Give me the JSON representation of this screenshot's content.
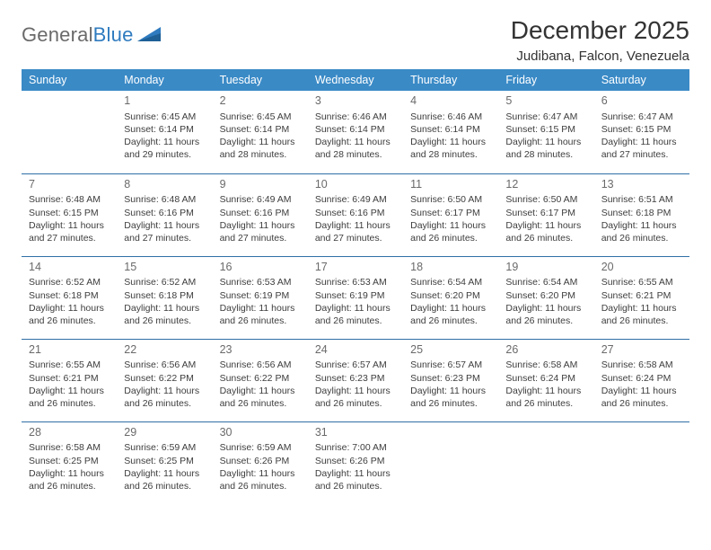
{
  "logo": {
    "part1": "General",
    "part2": "Blue"
  },
  "title": "December 2025",
  "subtitle": "Judibana, Falcon, Venezuela",
  "colors": {
    "header_bg": "#3a8ac6",
    "header_text": "#ffffff",
    "row_border": "#2f6fa6",
    "daynum_text": "#6a6a6a",
    "body_text": "#3d3d3d",
    "page_bg": "#ffffff",
    "logo_gray": "#6a6a6a",
    "logo_blue": "#2f7bbf"
  },
  "dayHeaders": [
    "Sunday",
    "Monday",
    "Tuesday",
    "Wednesday",
    "Thursday",
    "Friday",
    "Saturday"
  ],
  "weeks": [
    [
      null,
      {
        "n": "1",
        "sr": "Sunrise: 6:45 AM",
        "ss": "Sunset: 6:14 PM",
        "d1": "Daylight: 11 hours",
        "d2": "and 29 minutes."
      },
      {
        "n": "2",
        "sr": "Sunrise: 6:45 AM",
        "ss": "Sunset: 6:14 PM",
        "d1": "Daylight: 11 hours",
        "d2": "and 28 minutes."
      },
      {
        "n": "3",
        "sr": "Sunrise: 6:46 AM",
        "ss": "Sunset: 6:14 PM",
        "d1": "Daylight: 11 hours",
        "d2": "and 28 minutes."
      },
      {
        "n": "4",
        "sr": "Sunrise: 6:46 AM",
        "ss": "Sunset: 6:14 PM",
        "d1": "Daylight: 11 hours",
        "d2": "and 28 minutes."
      },
      {
        "n": "5",
        "sr": "Sunrise: 6:47 AM",
        "ss": "Sunset: 6:15 PM",
        "d1": "Daylight: 11 hours",
        "d2": "and 28 minutes."
      },
      {
        "n": "6",
        "sr": "Sunrise: 6:47 AM",
        "ss": "Sunset: 6:15 PM",
        "d1": "Daylight: 11 hours",
        "d2": "and 27 minutes."
      }
    ],
    [
      {
        "n": "7",
        "sr": "Sunrise: 6:48 AM",
        "ss": "Sunset: 6:15 PM",
        "d1": "Daylight: 11 hours",
        "d2": "and 27 minutes."
      },
      {
        "n": "8",
        "sr": "Sunrise: 6:48 AM",
        "ss": "Sunset: 6:16 PM",
        "d1": "Daylight: 11 hours",
        "d2": "and 27 minutes."
      },
      {
        "n": "9",
        "sr": "Sunrise: 6:49 AM",
        "ss": "Sunset: 6:16 PM",
        "d1": "Daylight: 11 hours",
        "d2": "and 27 minutes."
      },
      {
        "n": "10",
        "sr": "Sunrise: 6:49 AM",
        "ss": "Sunset: 6:16 PM",
        "d1": "Daylight: 11 hours",
        "d2": "and 27 minutes."
      },
      {
        "n": "11",
        "sr": "Sunrise: 6:50 AM",
        "ss": "Sunset: 6:17 PM",
        "d1": "Daylight: 11 hours",
        "d2": "and 26 minutes."
      },
      {
        "n": "12",
        "sr": "Sunrise: 6:50 AM",
        "ss": "Sunset: 6:17 PM",
        "d1": "Daylight: 11 hours",
        "d2": "and 26 minutes."
      },
      {
        "n": "13",
        "sr": "Sunrise: 6:51 AM",
        "ss": "Sunset: 6:18 PM",
        "d1": "Daylight: 11 hours",
        "d2": "and 26 minutes."
      }
    ],
    [
      {
        "n": "14",
        "sr": "Sunrise: 6:52 AM",
        "ss": "Sunset: 6:18 PM",
        "d1": "Daylight: 11 hours",
        "d2": "and 26 minutes."
      },
      {
        "n": "15",
        "sr": "Sunrise: 6:52 AM",
        "ss": "Sunset: 6:18 PM",
        "d1": "Daylight: 11 hours",
        "d2": "and 26 minutes."
      },
      {
        "n": "16",
        "sr": "Sunrise: 6:53 AM",
        "ss": "Sunset: 6:19 PM",
        "d1": "Daylight: 11 hours",
        "d2": "and 26 minutes."
      },
      {
        "n": "17",
        "sr": "Sunrise: 6:53 AM",
        "ss": "Sunset: 6:19 PM",
        "d1": "Daylight: 11 hours",
        "d2": "and 26 minutes."
      },
      {
        "n": "18",
        "sr": "Sunrise: 6:54 AM",
        "ss": "Sunset: 6:20 PM",
        "d1": "Daylight: 11 hours",
        "d2": "and 26 minutes."
      },
      {
        "n": "19",
        "sr": "Sunrise: 6:54 AM",
        "ss": "Sunset: 6:20 PM",
        "d1": "Daylight: 11 hours",
        "d2": "and 26 minutes."
      },
      {
        "n": "20",
        "sr": "Sunrise: 6:55 AM",
        "ss": "Sunset: 6:21 PM",
        "d1": "Daylight: 11 hours",
        "d2": "and 26 minutes."
      }
    ],
    [
      {
        "n": "21",
        "sr": "Sunrise: 6:55 AM",
        "ss": "Sunset: 6:21 PM",
        "d1": "Daylight: 11 hours",
        "d2": "and 26 minutes."
      },
      {
        "n": "22",
        "sr": "Sunrise: 6:56 AM",
        "ss": "Sunset: 6:22 PM",
        "d1": "Daylight: 11 hours",
        "d2": "and 26 minutes."
      },
      {
        "n": "23",
        "sr": "Sunrise: 6:56 AM",
        "ss": "Sunset: 6:22 PM",
        "d1": "Daylight: 11 hours",
        "d2": "and 26 minutes."
      },
      {
        "n": "24",
        "sr": "Sunrise: 6:57 AM",
        "ss": "Sunset: 6:23 PM",
        "d1": "Daylight: 11 hours",
        "d2": "and 26 minutes."
      },
      {
        "n": "25",
        "sr": "Sunrise: 6:57 AM",
        "ss": "Sunset: 6:23 PM",
        "d1": "Daylight: 11 hours",
        "d2": "and 26 minutes."
      },
      {
        "n": "26",
        "sr": "Sunrise: 6:58 AM",
        "ss": "Sunset: 6:24 PM",
        "d1": "Daylight: 11 hours",
        "d2": "and 26 minutes."
      },
      {
        "n": "27",
        "sr": "Sunrise: 6:58 AM",
        "ss": "Sunset: 6:24 PM",
        "d1": "Daylight: 11 hours",
        "d2": "and 26 minutes."
      }
    ],
    [
      {
        "n": "28",
        "sr": "Sunrise: 6:58 AM",
        "ss": "Sunset: 6:25 PM",
        "d1": "Daylight: 11 hours",
        "d2": "and 26 minutes."
      },
      {
        "n": "29",
        "sr": "Sunrise: 6:59 AM",
        "ss": "Sunset: 6:25 PM",
        "d1": "Daylight: 11 hours",
        "d2": "and 26 minutes."
      },
      {
        "n": "30",
        "sr": "Sunrise: 6:59 AM",
        "ss": "Sunset: 6:26 PM",
        "d1": "Daylight: 11 hours",
        "d2": "and 26 minutes."
      },
      {
        "n": "31",
        "sr": "Sunrise: 7:00 AM",
        "ss": "Sunset: 6:26 PM",
        "d1": "Daylight: 11 hours",
        "d2": "and 26 minutes."
      },
      null,
      null,
      null
    ]
  ]
}
